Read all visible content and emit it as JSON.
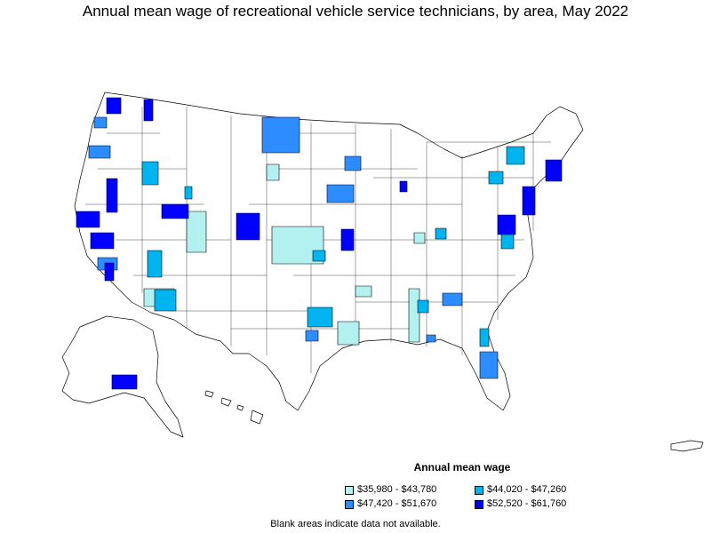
{
  "title": "Annual mean wage of recreational vehicle service technicians, by area, May 2022",
  "legend": {
    "title": "Annual mean wage",
    "items": [
      {
        "label": "$35,980 - $43,780",
        "color": "#b3f0f0"
      },
      {
        "label": "$44,020 - $47,260",
        "color": "#00b4f0"
      },
      {
        "label": "$47,420 - $51,670",
        "color": "#2d8cff"
      },
      {
        "label": "$52,520 - $61,760",
        "color": "#0000ff"
      }
    ]
  },
  "footnote": "Blank areas indicate data not available."
}
